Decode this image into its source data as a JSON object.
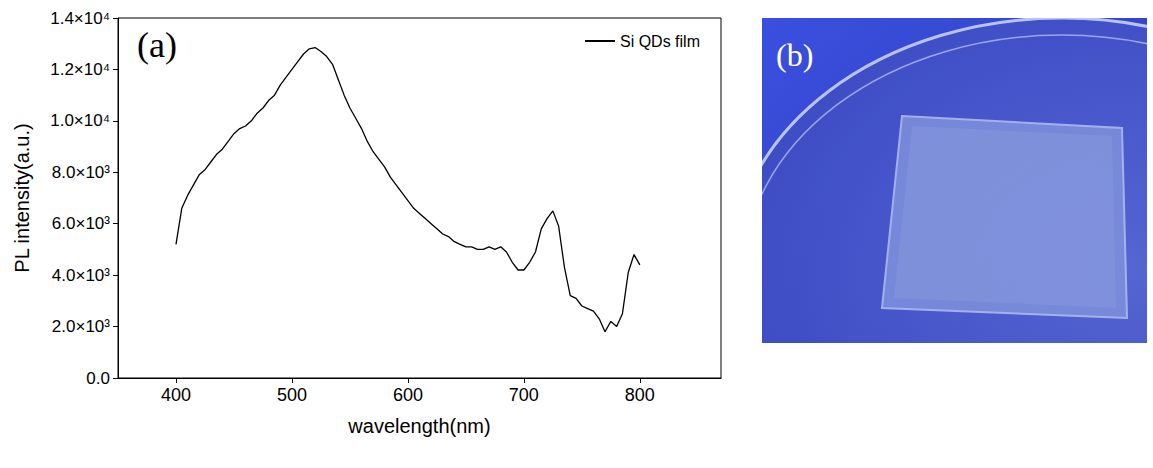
{
  "chart_data": {
    "type": "line",
    "title": "(a)",
    "xlabel": "wavelength(nm)",
    "ylabel": "PL intensity(a.u.)",
    "x": [
      400,
      405,
      410,
      415,
      420,
      425,
      430,
      435,
      440,
      445,
      450,
      455,
      460,
      465,
      470,
      475,
      480,
      485,
      490,
      495,
      500,
      505,
      510,
      515,
      520,
      525,
      530,
      535,
      540,
      545,
      550,
      555,
      560,
      565,
      570,
      575,
      580,
      585,
      590,
      595,
      600,
      605,
      610,
      615,
      620,
      625,
      630,
      635,
      640,
      645,
      650,
      655,
      660,
      665,
      670,
      675,
      680,
      685,
      690,
      695,
      700,
      705,
      710,
      715,
      720,
      725,
      730,
      735,
      740,
      745,
      750,
      755,
      760,
      765,
      770,
      775,
      780,
      785,
      790,
      795,
      800
    ],
    "series": [
      {
        "name": "Si QDs film",
        "color": "#000000",
        "line_style": "solid",
        "values": [
          5200,
          6600,
          7100,
          7500,
          7900,
          8100,
          8400,
          8700,
          8900,
          9200,
          9500,
          9700,
          9800,
          10000,
          10300,
          10500,
          10800,
          11000,
          11400,
          11700,
          12000,
          12300,
          12600,
          12800,
          12850,
          12700,
          12500,
          12200,
          11600,
          11000,
          10500,
          10100,
          9700,
          9200,
          8800,
          8500,
          8200,
          7800,
          7500,
          7200,
          6900,
          6600,
          6400,
          6200,
          6000,
          5800,
          5600,
          5500,
          5300,
          5200,
          5100,
          5100,
          5000,
          5000,
          5100,
          5000,
          5100,
          4900,
          4500,
          4200,
          4200,
          4500,
          4900,
          5800,
          6200,
          6500,
          5900,
          4300,
          3200,
          3100,
          2800,
          2700,
          2600,
          2300,
          1800,
          2200,
          2000,
          2500,
          4100,
          4800,
          4400
        ]
      }
    ],
    "xlim": [
      350,
      870
    ],
    "xticks": [
      400,
      500,
      600,
      700,
      800
    ],
    "ylim": [
      0,
      14000
    ],
    "yticks": [
      {
        "value": 0,
        "label": "0.0"
      },
      {
        "value": 2000,
        "label": "2.0×10³"
      },
      {
        "value": 4000,
        "label": "4.0×10³"
      },
      {
        "value": 6000,
        "label": "6.0×10³"
      },
      {
        "value": 8000,
        "label": "8.0×10³"
      },
      {
        "value": 10000,
        "label": "1.0×10⁴"
      },
      {
        "value": 12000,
        "label": "1.2×10⁴"
      },
      {
        "value": 14000,
        "label": "1.4×10⁴"
      }
    ],
    "legend": "upper right",
    "grid": false
  },
  "photo": {
    "label": "(b)"
  }
}
